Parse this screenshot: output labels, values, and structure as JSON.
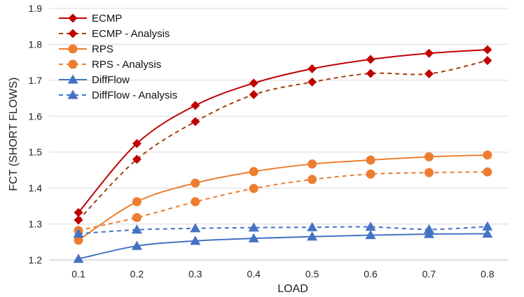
{
  "chart_data": {
    "type": "line",
    "title": "",
    "xlabel": "LOAD",
    "ylabel": "FCT (SHORT FLOWS)",
    "x": [
      0.1,
      0.2,
      0.3,
      0.4,
      0.5,
      0.6,
      0.7,
      0.8
    ],
    "x_tick_labels": [
      "0.1",
      "0.2",
      "0.3",
      "0.4",
      "0.5",
      "0.6",
      "0.7",
      "0.8"
    ],
    "ylim": [
      1.2,
      1.9
    ],
    "y_ticks": [
      1.2,
      1.3,
      1.4,
      1.5,
      1.6,
      1.7,
      1.8,
      1.9
    ],
    "y_tick_labels": [
      "1.2",
      "1.3",
      "1.4",
      "1.5",
      "1.6",
      "1.7",
      "1.8",
      "1.9"
    ],
    "grid": "horizontal",
    "legend_position": "top-left",
    "series": [
      {
        "name": "ECMP",
        "values": [
          1.332,
          1.524,
          1.63,
          1.692,
          1.732,
          1.758,
          1.775,
          1.785
        ],
        "color": "#c00000",
        "marker": "diamond",
        "dash": false
      },
      {
        "name": "ECMP - Analysis",
        "values": [
          1.311,
          1.48,
          1.585,
          1.66,
          1.695,
          1.719,
          1.718,
          1.755
        ],
        "color": "#a0400f",
        "marker": "diamond",
        "dash": true,
        "marker_color": "#c00000"
      },
      {
        "name": "RPS",
        "values": [
          1.255,
          1.362,
          1.414,
          1.446,
          1.467,
          1.478,
          1.487,
          1.492
        ],
        "color": "#ed7d31",
        "marker": "circle",
        "dash": false
      },
      {
        "name": "RPS - Analysis",
        "values": [
          1.282,
          1.318,
          1.362,
          1.399,
          1.424,
          1.439,
          1.443,
          1.445
        ],
        "color": "#ed7d31",
        "marker": "circle",
        "dash": true
      },
      {
        "name": "DiffFlow",
        "values": [
          1.203,
          1.239,
          1.253,
          1.26,
          1.265,
          1.269,
          1.272,
          1.273
        ],
        "color": "#4472c4",
        "marker": "triangle",
        "dash": false
      },
      {
        "name": "DiffFlow - Analysis",
        "values": [
          1.273,
          1.284,
          1.288,
          1.29,
          1.291,
          1.292,
          1.285,
          1.293
        ],
        "color": "#4472c4",
        "marker": "triangle",
        "dash": true
      }
    ]
  }
}
